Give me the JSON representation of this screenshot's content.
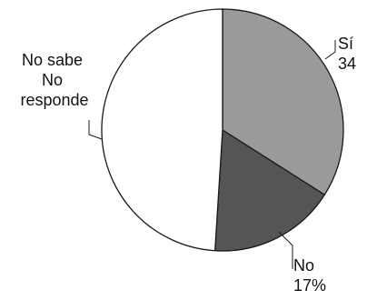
{
  "chart_data": {
    "type": "pie",
    "slices": [
      {
        "id": "si",
        "label_lines": [
          "Sí",
          "34"
        ],
        "value": 34,
        "color": "#9a9a9a"
      },
      {
        "id": "no",
        "label_lines": [
          "No",
          "17%"
        ],
        "value": 17,
        "color": "#555555"
      },
      {
        "id": "ns-nr",
        "label_lines": [
          "No sabe",
          "No",
          "responde"
        ],
        "value": 49,
        "color": "#ffffff"
      }
    ],
    "start_angle_deg": 0,
    "direction": "clockwise",
    "legend": "none"
  }
}
